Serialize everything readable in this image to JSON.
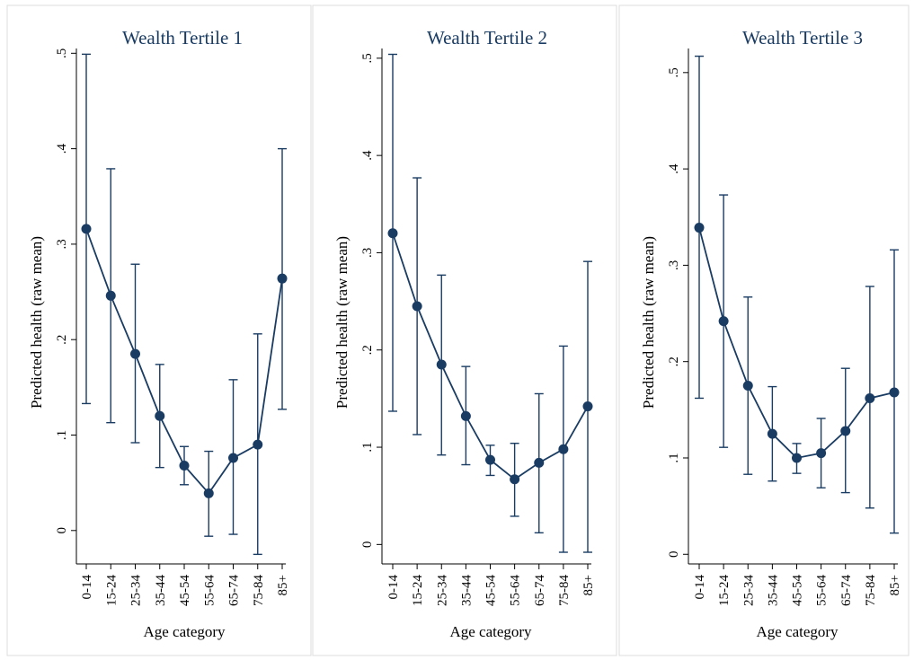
{
  "colors": {
    "series": "#1a3c63",
    "axis": "#000000",
    "panel_border": "#dcdcdc",
    "title": "#1a3c63"
  },
  "chart_data": [
    {
      "type": "line",
      "title": "Wealth Tertile 1",
      "xlabel": "Age category",
      "ylabel": "Predicted health (raw mean)",
      "categories": [
        "0-14",
        "15-24",
        "25-34",
        "35-44",
        "45-54",
        "55-64",
        "65-74",
        "75-84",
        "85+"
      ],
      "ylim": [
        -0.035,
        0.505
      ],
      "yticks": [
        0,
        0.1,
        0.2,
        0.3,
        0.4,
        0.5
      ],
      "ytick_labels": [
        "0",
        ".1",
        ".2",
        ".3",
        ".4",
        ".5"
      ],
      "series": [
        {
          "values": [
            0.316,
            0.246,
            0.185,
            0.12,
            0.068,
            0.039,
            0.076,
            0.09,
            0.264
          ],
          "ci_lower": [
            0.133,
            0.113,
            0.092,
            0.066,
            0.048,
            -0.006,
            -0.004,
            -0.025,
            0.127
          ],
          "ci_upper": [
            0.499,
            0.379,
            0.279,
            0.174,
            0.088,
            0.083,
            0.158,
            0.206,
            0.4
          ]
        }
      ],
      "error_bars": true,
      "grid": false
    },
    {
      "type": "line",
      "title": "Wealth Tertile 2",
      "xlabel": "Age category",
      "ylabel": "Predicted health (raw mean)",
      "categories": [
        "0-14",
        "15-24",
        "25-34",
        "35-44",
        "45-54",
        "55-64",
        "65-74",
        "75-84",
        "85+"
      ],
      "ylim": [
        -0.02,
        0.51
      ],
      "yticks": [
        0,
        0.1,
        0.2,
        0.3,
        0.4,
        0.5
      ],
      "ytick_labels": [
        "0",
        ".1",
        ".2",
        ".3",
        ".4",
        ".5"
      ],
      "series": [
        {
          "values": [
            0.32,
            0.245,
            0.185,
            0.132,
            0.087,
            0.067,
            0.084,
            0.098,
            0.142
          ],
          "ci_lower": [
            0.137,
            0.113,
            0.092,
            0.082,
            0.071,
            0.029,
            0.012,
            -0.008,
            -0.008
          ],
          "ci_upper": [
            0.504,
            0.377,
            0.277,
            0.183,
            0.102,
            0.104,
            0.155,
            0.204,
            0.291
          ]
        }
      ],
      "error_bars": true,
      "grid": false
    },
    {
      "type": "line",
      "title": "Wealth Tertile 3",
      "xlabel": "Age category",
      "ylabel": "Predicted health (raw mean)",
      "categories": [
        "0-14",
        "15-24",
        "25-34",
        "35-44",
        "45-54",
        "55-64",
        "65-74",
        "75-84",
        "85+"
      ],
      "ylim": [
        -0.01,
        0.525
      ],
      "yticks": [
        0,
        0.1,
        0.2,
        0.3,
        0.4,
        0.5
      ],
      "ytick_labels": [
        "0",
        ".1",
        ".2",
        ".3",
        ".4",
        ".5"
      ],
      "series": [
        {
          "values": [
            0.339,
            0.242,
            0.175,
            0.125,
            0.1,
            0.105,
            0.128,
            0.162,
            0.168
          ],
          "ci_lower": [
            0.162,
            0.111,
            0.083,
            0.076,
            0.084,
            0.069,
            0.064,
            0.048,
            0.022
          ],
          "ci_upper": [
            0.517,
            0.373,
            0.267,
            0.174,
            0.115,
            0.141,
            0.193,
            0.278,
            0.316
          ]
        }
      ],
      "error_bars": true,
      "grid": false
    }
  ]
}
